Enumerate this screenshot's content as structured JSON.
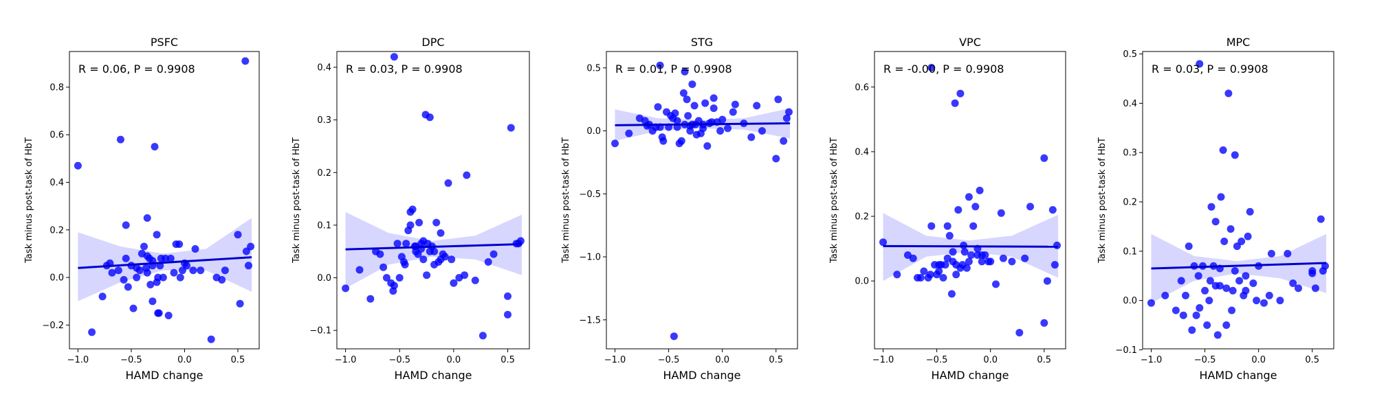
{
  "style": {
    "point_color": "#0000ff",
    "line_color": "#0000cc",
    "band_color": "#0000ff"
  },
  "chart_data": [
    {
      "type": "scatter",
      "title": "PSFC",
      "xlabel": "HAMD change",
      "ylabel": "Task minus post-task of HbT",
      "annotation": "R = 0.06, P = 0.9908",
      "xlim": [
        -1.08,
        0.7
      ],
      "ylim": [
        -0.3,
        0.95
      ],
      "xticks": [
        -1.0,
        -0.5,
        0.0,
        0.5
      ],
      "xtick_labels": [
        "−1.0",
        "−0.5",
        "0.0",
        "0.5"
      ],
      "yticks": [
        -0.2,
        0.0,
        0.2,
        0.4,
        0.6,
        0.8
      ],
      "ytick_labels": [
        "−0.2",
        "0.0",
        "0.2",
        "0.4",
        "0.6",
        "0.8"
      ],
      "fit": {
        "x": [
          -1.0,
          0.63
        ],
        "y": [
          0.04,
          0.085
        ]
      },
      "ci_band": {
        "x": [
          -1.0,
          -0.6,
          -0.2,
          0.2,
          0.63
        ],
        "upper": [
          0.19,
          0.13,
          0.1,
          0.12,
          0.25
        ],
        "lower": [
          -0.1,
          -0.02,
          0.03,
          0.03,
          -0.06
        ]
      },
      "points": {
        "x": [
          -1.0,
          -0.87,
          -0.77,
          -0.73,
          -0.7,
          -0.68,
          -0.6,
          -0.57,
          -0.55,
          -0.53,
          -0.5,
          -0.48,
          -0.45,
          -0.42,
          -0.4,
          -0.38,
          -0.36,
          -0.35,
          -0.33,
          -0.32,
          -0.3,
          -0.28,
          -0.26,
          -0.25,
          -0.25,
          -0.24,
          -0.23,
          -0.2,
          -0.18,
          -0.15,
          -0.13,
          -0.1,
          -0.08,
          -0.05,
          -0.04,
          -0.02,
          0.0,
          0.02,
          0.08,
          0.1,
          0.15,
          0.25,
          0.3,
          0.35,
          0.38,
          0.5,
          0.52,
          0.57,
          0.58,
          0.6,
          0.62,
          -0.62,
          -0.55,
          -0.3,
          -0.26,
          -0.3,
          -0.35,
          -0.45,
          -0.35,
          -0.22
        ],
        "y": [
          0.47,
          -0.23,
          -0.08,
          0.05,
          0.06,
          0.02,
          0.58,
          -0.01,
          0.22,
          -0.04,
          0.05,
          -0.13,
          0.0,
          0.03,
          0.1,
          0.13,
          0.04,
          0.25,
          0.08,
          -0.03,
          0.07,
          0.55,
          0.18,
          -0.15,
          0.0,
          -0.15,
          0.05,
          0.0,
          0.08,
          -0.16,
          0.08,
          0.02,
          0.14,
          0.14,
          0.0,
          0.03,
          0.06,
          0.05,
          0.03,
          0.12,
          0.03,
          -0.26,
          0.0,
          -0.01,
          0.03,
          0.18,
          -0.11,
          0.91,
          0.11,
          0.05,
          0.13,
          0.03,
          0.08,
          0.05,
          -0.02,
          -0.1,
          0.02,
          0.04,
          0.09,
          0.08
        ]
      }
    },
    {
      "type": "scatter",
      "title": "DPC",
      "xlabel": "HAMD change",
      "ylabel": "Task minus post-task of HbT",
      "annotation": "R = 0.03, P = 0.9908",
      "xlim": [
        -1.08,
        0.7
      ],
      "ylim": [
        -0.135,
        0.43
      ],
      "xticks": [
        -1.0,
        -0.5,
        0.0,
        0.5
      ],
      "xtick_labels": [
        "−1.0",
        "−0.5",
        "0.0",
        "0.5"
      ],
      "yticks": [
        -0.1,
        0.0,
        0.1,
        0.2,
        0.3,
        0.4
      ],
      "ytick_labels": [
        "−0.1",
        "0.0",
        "0.1",
        "0.2",
        "0.3",
        "0.4"
      ],
      "fit": {
        "x": [
          -1.0,
          0.63
        ],
        "y": [
          0.054,
          0.064
        ]
      },
      "ci_band": {
        "x": [
          -1.0,
          -0.6,
          -0.2,
          0.2,
          0.63
        ],
        "upper": [
          0.125,
          0.085,
          0.07,
          0.08,
          0.12
        ],
        "lower": [
          -0.02,
          0.025,
          0.04,
          0.035,
          0.005
        ]
      },
      "points": {
        "x": [
          -1.0,
          -0.87,
          -0.77,
          -0.72,
          -0.68,
          -0.65,
          -0.62,
          -0.58,
          -0.56,
          -0.55,
          -0.52,
          -0.5,
          -0.48,
          -0.46,
          -0.44,
          -0.42,
          -0.4,
          -0.38,
          -0.36,
          -0.35,
          -0.33,
          -0.32,
          -0.3,
          -0.28,
          -0.26,
          -0.25,
          -0.24,
          -0.22,
          -0.2,
          -0.18,
          -0.16,
          -0.14,
          -0.12,
          -0.1,
          -0.08,
          -0.05,
          -0.02,
          0.0,
          0.05,
          0.1,
          0.12,
          0.2,
          0.27,
          0.32,
          0.37,
          0.5,
          0.5,
          0.53,
          0.58,
          0.6,
          0.62,
          -0.55,
          -0.4,
          -0.28,
          -0.22,
          -0.18,
          -0.12,
          -0.3,
          -0.45,
          -0.35
        ],
        "y": [
          -0.02,
          0.015,
          -0.04,
          0.05,
          0.045,
          0.02,
          0.0,
          -0.01,
          -0.025,
          -0.015,
          0.065,
          0.0,
          0.04,
          0.03,
          0.065,
          0.09,
          0.125,
          0.13,
          0.06,
          0.05,
          0.045,
          0.105,
          0.065,
          0.035,
          0.31,
          0.005,
          0.065,
          0.305,
          0.06,
          0.05,
          0.105,
          0.03,
          0.085,
          0.045,
          0.04,
          0.18,
          0.035,
          -0.01,
          0.0,
          0.005,
          0.195,
          -0.005,
          -0.11,
          0.03,
          0.045,
          -0.035,
          -0.07,
          0.285,
          0.065,
          0.065,
          0.07,
          0.42,
          0.1,
          0.07,
          0.05,
          0.025,
          0.035,
          0.055,
          0.025,
          0.06
        ]
      }
    },
    {
      "type": "scatter",
      "title": "STG",
      "xlabel": "HAMD change",
      "ylabel": "Task minus post-task of HbT",
      "annotation": "R = 0.01, P = 0.9908",
      "xlim": [
        -1.08,
        0.7
      ],
      "ylim": [
        -1.73,
        0.63
      ],
      "xticks": [
        -1.0,
        -0.5,
        0.0,
        0.5
      ],
      "xtick_labels": [
        "−1.0",
        "−0.5",
        "0.0",
        "0.5"
      ],
      "yticks": [
        -1.5,
        -1.0,
        -0.5,
        0.0,
        0.5
      ],
      "ytick_labels": [
        "−1.5",
        "−1.0",
        "−0.5",
        "0.0",
        "0.5"
      ],
      "fit": {
        "x": [
          -1.0,
          0.63
        ],
        "y": [
          0.045,
          0.06
        ]
      },
      "ci_band": {
        "x": [
          -1.0,
          -0.6,
          -0.2,
          0.2,
          0.63
        ],
        "upper": [
          0.17,
          0.1,
          0.085,
          0.1,
          0.18
        ],
        "lower": [
          -0.08,
          0.0,
          0.02,
          0.01,
          -0.06
        ]
      },
      "points": {
        "x": [
          -1.0,
          -0.87,
          -0.77,
          -0.72,
          -0.7,
          -0.68,
          -0.65,
          -0.62,
          -0.6,
          -0.58,
          -0.56,
          -0.55,
          -0.52,
          -0.5,
          -0.48,
          -0.46,
          -0.44,
          -0.42,
          -0.4,
          -0.38,
          -0.36,
          -0.35,
          -0.33,
          -0.32,
          -0.3,
          -0.28,
          -0.26,
          -0.25,
          -0.24,
          -0.22,
          -0.2,
          -0.18,
          -0.16,
          -0.14,
          -0.12,
          -0.1,
          -0.08,
          -0.05,
          -0.02,
          0.0,
          0.05,
          0.1,
          0.12,
          0.2,
          0.27,
          0.32,
          0.37,
          0.5,
          0.52,
          0.57,
          0.6,
          0.62,
          -0.58,
          -0.45,
          -0.35,
          -0.28,
          -0.18,
          -0.08,
          -0.42,
          -0.3
        ],
        "y": [
          -0.1,
          -0.02,
          0.1,
          0.08,
          0.04,
          0.05,
          0.0,
          0.03,
          0.19,
          0.03,
          -0.05,
          -0.08,
          0.15,
          0.03,
          0.12,
          0.1,
          0.14,
          0.08,
          -0.1,
          -0.08,
          0.3,
          0.05,
          0.25,
          0.12,
          0.0,
          0.37,
          0.2,
          0.05,
          -0.03,
          0.08,
          -0.02,
          0.02,
          0.22,
          -0.12,
          0.06,
          0.07,
          0.26,
          0.07,
          0.0,
          0.09,
          0.02,
          0.15,
          0.21,
          0.06,
          -0.05,
          0.2,
          0.0,
          -0.22,
          0.25,
          -0.08,
          0.1,
          0.15,
          0.52,
          -1.63,
          0.47,
          0.05,
          0.05,
          0.18,
          0.03,
          0.04
        ]
      }
    },
    {
      "type": "scatter",
      "title": "VPC",
      "xlabel": "HAMD change",
      "ylabel": "Task minus post-task of HbT",
      "annotation": "R = -0.00, P = 0.9908",
      "xlim": [
        -1.08,
        0.7
      ],
      "ylim": [
        -0.21,
        0.71
      ],
      "xticks": [
        -1.0,
        -0.5,
        0.0,
        0.5
      ],
      "xtick_labels": [
        "−1.0",
        "−0.5",
        "0.0",
        "0.5"
      ],
      "yticks": [
        0.0,
        0.2,
        0.4,
        0.6
      ],
      "ytick_labels": [
        "0.0",
        "0.2",
        "0.4",
        "0.6"
      ],
      "fit": {
        "x": [
          -1.0,
          0.63
        ],
        "y": [
          0.108,
          0.106
        ]
      },
      "ci_band": {
        "x": [
          -1.0,
          -0.6,
          -0.2,
          0.2,
          0.63
        ],
        "upper": [
          0.21,
          0.14,
          0.125,
          0.14,
          0.205
        ],
        "lower": [
          0.0,
          0.075,
          0.09,
          0.075,
          0.01
        ]
      },
      "points": {
        "x": [
          -1.0,
          -0.87,
          -0.77,
          -0.72,
          -0.68,
          -0.65,
          -0.62,
          -0.58,
          -0.56,
          -0.55,
          -0.52,
          -0.5,
          -0.48,
          -0.46,
          -0.44,
          -0.42,
          -0.4,
          -0.38,
          -0.36,
          -0.35,
          -0.33,
          -0.32,
          -0.3,
          -0.28,
          -0.26,
          -0.25,
          -0.24,
          -0.22,
          -0.2,
          -0.18,
          -0.16,
          -0.14,
          -0.12,
          -0.1,
          -0.08,
          -0.05,
          -0.02,
          0.0,
          0.05,
          0.1,
          0.12,
          0.2,
          0.27,
          0.32,
          0.37,
          0.5,
          0.5,
          0.53,
          0.58,
          0.6,
          0.62,
          -0.55,
          -0.4,
          -0.32,
          -0.28,
          -0.48,
          -0.12,
          -0.35,
          -0.2,
          -0.08
        ],
        "y": [
          0.12,
          0.02,
          0.08,
          0.07,
          0.01,
          0.01,
          0.03,
          0.01,
          0.02,
          0.17,
          0.05,
          0.02,
          0.03,
          0.05,
          0.01,
          0.05,
          0.17,
          0.14,
          -0.04,
          0.06,
          0.55,
          0.02,
          0.22,
          0.58,
          0.05,
          0.11,
          0.09,
          0.04,
          0.26,
          0.08,
          0.17,
          0.23,
          0.08,
          0.28,
          0.06,
          0.08,
          0.06,
          0.06,
          -0.01,
          0.21,
          0.07,
          0.06,
          -0.16,
          0.07,
          0.23,
          0.38,
          -0.13,
          0.0,
          0.22,
          0.05,
          0.11,
          0.66,
          0.07,
          0.05,
          0.04,
          0.05,
          0.1,
          0.09,
          0.06,
          0.08
        ]
      }
    },
    {
      "type": "scatter",
      "title": "MPC",
      "xlabel": "HAMD change",
      "ylabel": "Task minus post-task of HbT",
      "annotation": "R = 0.03, P = 0.9908",
      "xlim": [
        -1.08,
        0.7
      ],
      "ylim": [
        -0.098,
        0.505
      ],
      "xticks": [
        -1.0,
        -0.5,
        0.0,
        0.5
      ],
      "xtick_labels": [
        "−1.0",
        "−0.5",
        "0.0",
        "0.5"
      ],
      "yticks": [
        -0.1,
        0.0,
        0.1,
        0.2,
        0.3,
        0.4,
        0.5
      ],
      "ytick_labels": [
        "−0.1",
        "0.0",
        "0.1",
        "0.2",
        "0.3",
        "0.4",
        "0.5"
      ],
      "fit": {
        "x": [
          -1.0,
          0.63
        ],
        "y": [
          0.065,
          0.076
        ]
      },
      "ci_band": {
        "x": [
          -1.0,
          -0.6,
          -0.2,
          0.2,
          0.63
        ],
        "upper": [
          0.135,
          0.09,
          0.08,
          0.09,
          0.135
        ],
        "lower": [
          -0.005,
          0.04,
          0.055,
          0.045,
          0.015
        ]
      },
      "points": {
        "x": [
          -1.0,
          -0.87,
          -0.77,
          -0.72,
          -0.7,
          -0.68,
          -0.65,
          -0.62,
          -0.6,
          -0.58,
          -0.56,
          -0.55,
          -0.52,
          -0.5,
          -0.48,
          -0.46,
          -0.44,
          -0.42,
          -0.4,
          -0.38,
          -0.36,
          -0.35,
          -0.33,
          -0.32,
          -0.3,
          -0.28,
          -0.26,
          -0.25,
          -0.24,
          -0.22,
          -0.2,
          -0.18,
          -0.16,
          -0.14,
          -0.12,
          -0.1,
          -0.08,
          -0.05,
          -0.02,
          0.0,
          0.05,
          0.1,
          0.12,
          0.2,
          0.27,
          0.32,
          0.37,
          0.5,
          0.5,
          0.53,
          0.58,
          0.6,
          0.62,
          -0.55,
          -0.45,
          -0.3,
          -0.22,
          -0.36,
          -0.4,
          -0.12
        ],
        "y": [
          -0.005,
          0.01,
          -0.02,
          0.04,
          -0.03,
          0.01,
          0.11,
          -0.06,
          0.07,
          -0.03,
          0.05,
          -0.015,
          0.07,
          0.02,
          -0.05,
          0.0,
          0.19,
          0.07,
          0.16,
          -0.07,
          0.03,
          0.21,
          0.305,
          0.12,
          -0.05,
          0.42,
          0.145,
          -0.02,
          0.02,
          0.295,
          0.11,
          0.04,
          0.12,
          0.01,
          0.02,
          0.13,
          0.18,
          0.035,
          0.0,
          0.07,
          -0.005,
          0.01,
          0.095,
          0.0,
          0.095,
          0.035,
          0.025,
          0.055,
          0.06,
          0.025,
          0.165,
          0.06,
          0.07,
          0.48,
          0.04,
          0.025,
          0.06,
          0.065,
          0.03,
          0.05
        ]
      }
    }
  ]
}
